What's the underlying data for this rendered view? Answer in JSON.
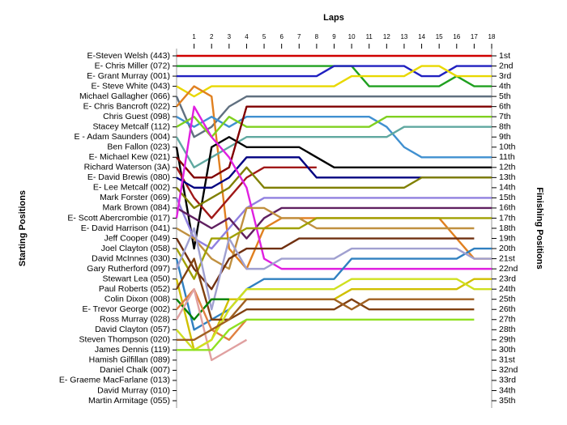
{
  "chart_data": {
    "type": "line",
    "x_label": "Laps",
    "y_label": "Starting Positions",
    "y2_label": "Finishing Positions",
    "x": [
      0,
      1,
      2,
      3,
      4,
      5,
      6,
      7,
      8,
      9,
      10,
      11,
      12,
      13,
      14,
      15,
      16,
      17,
      18
    ],
    "xlim": [
      0,
      18
    ],
    "xticks": [
      1,
      2,
      3,
      4,
      5,
      6,
      7,
      8,
      9,
      10,
      11,
      12,
      13,
      14,
      15,
      16,
      17,
      18
    ],
    "ylim": [
      35,
      1
    ],
    "y2lim": [
      35,
      1
    ],
    "y2ticks": [
      {
        "value": 1,
        "label": "1st"
      },
      {
        "value": 2,
        "label": "2nd"
      },
      {
        "value": 3,
        "label": "3rd"
      },
      {
        "value": 4,
        "label": "4th"
      },
      {
        "value": 5,
        "label": "5th"
      },
      {
        "value": 6,
        "label": "6th"
      },
      {
        "value": 7,
        "label": "7th"
      },
      {
        "value": 8,
        "label": "8th"
      },
      {
        "value": 9,
        "label": "9th"
      },
      {
        "value": 10,
        "label": "10th"
      },
      {
        "value": 11,
        "label": "11th"
      },
      {
        "value": 12,
        "label": "12th"
      },
      {
        "value": 13,
        "label": "13th"
      },
      {
        "value": 14,
        "label": "14th"
      },
      {
        "value": 15,
        "label": "15th"
      },
      {
        "value": 16,
        "label": "16th"
      },
      {
        "value": 17,
        "label": "17th"
      },
      {
        "value": 18,
        "label": "18th"
      },
      {
        "value": 19,
        "label": "19th"
      },
      {
        "value": 20,
        "label": "20th"
      },
      {
        "value": 21,
        "label": "21st"
      },
      {
        "value": 22,
        "label": "22nd"
      },
      {
        "value": 23,
        "label": "23rd"
      },
      {
        "value": 24,
        "label": "24th"
      },
      {
        "value": 25,
        "label": "25th"
      },
      {
        "value": 26,
        "label": "26th"
      },
      {
        "value": 27,
        "label": "27th"
      },
      {
        "value": 28,
        "label": "28th"
      },
      {
        "value": 29,
        "label": "29th"
      },
      {
        "value": 30,
        "label": "30th"
      },
      {
        "value": 31,
        "label": "31st"
      },
      {
        "value": 32,
        "label": "32nd"
      },
      {
        "value": 33,
        "label": "33rd"
      },
      {
        "value": 34,
        "label": "34th"
      },
      {
        "value": 35,
        "label": "35th"
      }
    ],
    "series": [
      {
        "name": "E-Steven Welsh (443)",
        "color": "#d00000",
        "values": [
          1,
          1,
          1,
          1,
          1,
          1,
          1,
          1,
          1,
          1,
          1,
          1,
          1,
          1,
          1,
          1,
          1,
          1,
          1
        ]
      },
      {
        "name": "E- Chris Miller (072)",
        "color": "#20a020",
        "values": [
          2,
          2,
          2,
          2,
          2,
          2,
          2,
          2,
          2,
          2,
          2,
          4,
          4,
          4,
          4,
          4,
          3,
          4,
          4
        ]
      },
      {
        "name": "E- Grant Murray (001)",
        "color": "#2020c0",
        "values": [
          3,
          3,
          3,
          3,
          3,
          3,
          3,
          3,
          3,
          2,
          2,
          2,
          2,
          2,
          3,
          3,
          2,
          2,
          2
        ]
      },
      {
        "name": "E- Steve White (043)",
        "color": "#e8d800",
        "values": [
          4,
          5,
          4,
          4,
          4,
          4,
          4,
          4,
          4,
          4,
          3,
          3,
          3,
          3,
          2,
          2,
          3,
          3,
          3
        ]
      },
      {
        "name": "Michael Gallagher (066)",
        "color": "#607080",
        "values": [
          5,
          9,
          8,
          6,
          5,
          5,
          5,
          5,
          5,
          5,
          5,
          5,
          5,
          5,
          5,
          5,
          5,
          5,
          5
        ]
      },
      {
        "name": "E- Chris Bancroft (022)",
        "color": "#e08020",
        "values": [
          6,
          4,
          5,
          20,
          22,
          18,
          17,
          17,
          17,
          17,
          17,
          17,
          17,
          17,
          17,
          17,
          19,
          21,
          21
        ]
      },
      {
        "name": "Chris Guest (098)",
        "color": "#4090d0",
        "values": [
          7,
          8,
          7,
          8,
          7,
          7,
          7,
          7,
          7,
          7,
          7,
          7,
          8,
          10,
          11,
          11,
          11,
          11,
          11
        ]
      },
      {
        "name": "Stacey Metcalf (112)",
        "color": "#80d020",
        "values": [
          8,
          7,
          9,
          7,
          8,
          8,
          8,
          8,
          8,
          8,
          8,
          8,
          7,
          7,
          7,
          7,
          7,
          7,
          7
        ]
      },
      {
        "name": "E - Adam Saunders (004)",
        "color": "#60a8a0",
        "values": [
          9,
          12,
          11,
          10,
          9,
          9,
          9,
          9,
          9,
          9,
          9,
          9,
          9,
          8,
          8,
          8,
          8,
          8,
          8
        ]
      },
      {
        "name": "Ben Fallon (023)",
        "color": "#000000",
        "values": [
          10,
          20,
          10,
          9,
          10,
          10,
          10,
          10,
          11,
          12,
          12,
          12,
          12,
          12,
          12,
          12,
          12,
          12,
          12
        ]
      },
      {
        "name": "E- Michael Kew (021)",
        "color": "#800000",
        "values": [
          11,
          13,
          13,
          12,
          6,
          6,
          6,
          6,
          6,
          6,
          6,
          6,
          6,
          6,
          6,
          6,
          6,
          6,
          6
        ]
      },
      {
        "name": "Richard Waterson (3A)",
        "color": "#a01818",
        "values": [
          12,
          15,
          17,
          15,
          13,
          12,
          12,
          12,
          12,
          null,
          null,
          null,
          null,
          null,
          null,
          null,
          null,
          null,
          null
        ]
      },
      {
        "name": "E- David Brewis (080)",
        "color": "#000080",
        "values": [
          13,
          14,
          14,
          13,
          11,
          11,
          11,
          11,
          13,
          13,
          13,
          13,
          13,
          13,
          13,
          13,
          13,
          13,
          13
        ]
      },
      {
        "name": "E- Lee Metcalf (002)",
        "color": "#808000",
        "values": [
          14,
          16,
          15,
          14,
          12,
          14,
          14,
          14,
          14,
          14,
          14,
          14,
          14,
          14,
          13,
          13,
          13,
          13,
          13
        ]
      },
      {
        "name": "Mark Forster (069)",
        "color": "#9080e0",
        "values": [
          15,
          19,
          20,
          18,
          16,
          15,
          15,
          15,
          15,
          15,
          15,
          15,
          15,
          15,
          15,
          15,
          15,
          15,
          15
        ]
      },
      {
        "name": "Mark Brown (084)",
        "color": "#602060",
        "values": [
          16,
          17,
          18,
          17,
          19,
          17,
          16,
          16,
          16,
          16,
          16,
          16,
          16,
          16,
          16,
          16,
          16,
          16,
          16
        ]
      },
      {
        "name": "E- Scott Abercrombie (017)",
        "color": "#e020e0",
        "values": [
          17,
          6,
          9,
          11,
          14,
          21,
          22,
          22,
          22,
          22,
          22,
          22,
          22,
          22,
          22,
          22,
          22,
          22,
          22
        ]
      },
      {
        "name": "E- David Harrison (041)",
        "color": "#c09040",
        "values": [
          18,
          19,
          21,
          22,
          16,
          16,
          17,
          17,
          18,
          18,
          18,
          18,
          18,
          18,
          18,
          18,
          18,
          18,
          null
        ]
      },
      {
        "name": "Jeff Cooper (049)",
        "color": "#703010",
        "values": [
          19,
          22,
          24,
          21,
          20,
          20,
          20,
          19,
          19,
          19,
          19,
          19,
          19,
          19,
          19,
          19,
          19,
          19,
          null
        ]
      },
      {
        "name": "Joel Clayton (058)",
        "color": "#a0a000",
        "values": [
          20,
          23,
          19,
          19,
          18,
          18,
          18,
          18,
          17,
          17,
          17,
          17,
          17,
          17,
          17,
          17,
          17,
          17,
          17
        ]
      },
      {
        "name": "David McInnes (030)",
        "color": "#3080c0",
        "values": [
          21,
          28,
          27,
          26,
          24,
          23,
          23,
          23,
          23,
          23,
          21,
          21,
          21,
          21,
          21,
          21,
          21,
          20,
          20
        ]
      },
      {
        "name": "Gary Rutherford (097)",
        "color": "#a0a0d0",
        "values": [
          22,
          18,
          26,
          19,
          22,
          22,
          21,
          21,
          21,
          21,
          20,
          20,
          20,
          20,
          20,
          20,
          20,
          21,
          21
        ]
      },
      {
        "name": "Stewart Lea (050)",
        "color": "#d0c000",
        "values": [
          23,
          30,
          29,
          25,
          25,
          25,
          25,
          25,
          25,
          25,
          24,
          24,
          24,
          24,
          24,
          24,
          24,
          23,
          23
        ]
      },
      {
        "name": "Paul Roberts (052)",
        "color": "#804010",
        "values": [
          24,
          21,
          27,
          27,
          26,
          26,
          26,
          26,
          26,
          26,
          25,
          26,
          26,
          26,
          26,
          26,
          26,
          26,
          null
        ]
      },
      {
        "name": "Colin Dixon (008)",
        "color": "#008000",
        "values": [
          25,
          27,
          25,
          25,
          null,
          null,
          null,
          null,
          null,
          null,
          null,
          null,
          null,
          null,
          null,
          null,
          null,
          null,
          null
        ]
      },
      {
        "name": "E- Trevor George (002)",
        "color": "#e08040",
        "values": [
          26,
          24,
          28,
          29,
          27,
          null,
          null,
          null,
          null,
          null,
          null,
          null,
          null,
          null,
          null,
          null,
          null,
          null,
          null
        ]
      },
      {
        "name": "Ross Murray (028)",
        "color": "#e0a0a0",
        "values": [
          27,
          24,
          31,
          30,
          29,
          null,
          null,
          null,
          null,
          null,
          null,
          null,
          null,
          null,
          null,
          null,
          null,
          null,
          null
        ]
      },
      {
        "name": "David Clayton (057)",
        "color": "#d0e020",
        "values": [
          28,
          30,
          29,
          26,
          24,
          24,
          24,
          24,
          24,
          24,
          23,
          23,
          23,
          23,
          23,
          23,
          23,
          24,
          24
        ]
      },
      {
        "name": "Steven Thompson (020)",
        "color": "#a06020",
        "values": [
          29,
          29,
          28,
          27,
          25,
          25,
          25,
          25,
          25,
          25,
          26,
          25,
          25,
          25,
          25,
          25,
          25,
          25,
          null
        ]
      },
      {
        "name": "James Dennis (119)",
        "color": "#90e020",
        "values": [
          30,
          30,
          30,
          28,
          27,
          27,
          27,
          27,
          27,
          27,
          27,
          27,
          27,
          27,
          27,
          27,
          27,
          27,
          null
        ]
      },
      {
        "name": "Hamish Gilfillan (089)",
        "color": "#808080",
        "values": [
          31,
          null,
          null,
          null,
          null,
          null,
          null,
          null,
          null,
          null,
          null,
          null,
          null,
          null,
          null,
          null,
          null,
          null,
          null
        ]
      },
      {
        "name": "Daniel Chalk (007)",
        "color": "#808080",
        "values": [
          32,
          null,
          null,
          null,
          null,
          null,
          null,
          null,
          null,
          null,
          null,
          null,
          null,
          null,
          null,
          null,
          null,
          null,
          null
        ]
      },
      {
        "name": "E- Graeme MacFarlane (013)",
        "color": "#808080",
        "values": [
          33,
          null,
          null,
          null,
          null,
          null,
          null,
          null,
          null,
          null,
          null,
          null,
          null,
          null,
          null,
          null,
          null,
          null,
          null
        ]
      },
      {
        "name": "David Murray (010)",
        "color": "#808080",
        "values": [
          34,
          null,
          null,
          null,
          null,
          null,
          null,
          null,
          null,
          null,
          null,
          null,
          null,
          null,
          null,
          null,
          null,
          null,
          null
        ]
      },
      {
        "name": "Martin Armitage (055)",
        "color": "#808080",
        "values": [
          35,
          null,
          null,
          null,
          null,
          null,
          null,
          null,
          null,
          null,
          null,
          null,
          null,
          null,
          null,
          null,
          null,
          null,
          null
        ]
      }
    ]
  }
}
